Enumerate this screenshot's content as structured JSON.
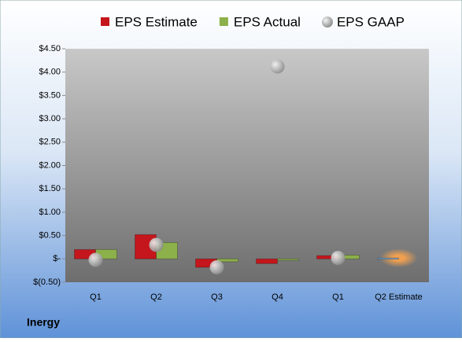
{
  "chart_data": {
    "type": "bar",
    "title": "Inergy",
    "categories": [
      "Q1",
      "Q2",
      "Q3",
      "Q4",
      "Q1",
      "Q2 Estimate"
    ],
    "series": [
      {
        "name": "EPS Estimate",
        "color": "#c4161c",
        "values": [
          0.2,
          0.52,
          -0.18,
          -0.1,
          0.07,
          0.02
        ]
      },
      {
        "name": "EPS Actual",
        "color": "#8cb04a",
        "values": [
          0.2,
          0.35,
          -0.06,
          -0.03,
          0.08,
          null
        ]
      },
      {
        "name": "EPS GAAP",
        "color": "#b0b0b0",
        "values": [
          -0.02,
          0.3,
          -0.18,
          4.12,
          0.02,
          null
        ]
      }
    ],
    "ylim": [
      -0.5,
      4.5
    ],
    "yticks": [
      {
        "value": -0.5,
        "label": "$(0.50)"
      },
      {
        "value": 0,
        "label": "$-"
      },
      {
        "value": 0.5,
        "label": "$0.50"
      },
      {
        "value": 1,
        "label": "$1.00"
      },
      {
        "value": 1.5,
        "label": "$1.50"
      },
      {
        "value": 2,
        "label": "$2.00"
      },
      {
        "value": 2.5,
        "label": "$2.50"
      },
      {
        "value": 3,
        "label": "$3.00"
      },
      {
        "value": 3.5,
        "label": "$3.50"
      },
      {
        "value": 4,
        "label": "$4.00"
      },
      {
        "value": 4.5,
        "label": "$4.50"
      }
    ]
  }
}
